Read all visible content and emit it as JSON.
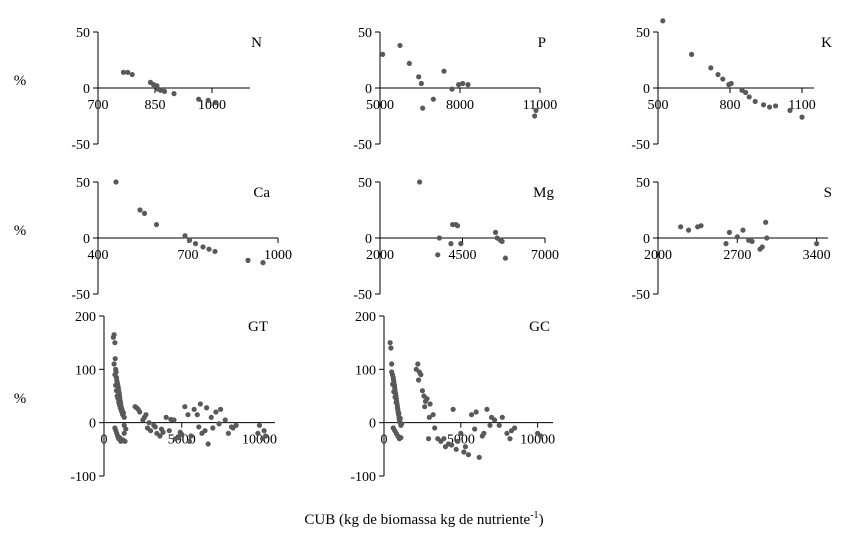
{
  "figure": {
    "xlabel_main": "CUB (kg de biomassa kg de nutriente",
    "xlabel_sup": "-1",
    "xlabel_close": ")",
    "ylabel": "%"
  },
  "chart_data": [
    {
      "type": "scatter",
      "title": "N",
      "ylabel": "%",
      "xlim": [
        700,
        1100
      ],
      "xticks": [
        700,
        850,
        1000
      ],
      "ylim": [
        -50,
        50
      ],
      "yticks": [
        50,
        0,
        -50
      ],
      "point_color": "#595959",
      "x": [
        767,
        778,
        790,
        838,
        846,
        855,
        858,
        865,
        875,
        900,
        965,
        990,
        1010
      ],
      "y": [
        14,
        14,
        12,
        5,
        3,
        2,
        -1,
        -2,
        -3,
        -5,
        -10,
        -11,
        -13
      ]
    },
    {
      "type": "scatter",
      "title": "P",
      "ylabel": "%",
      "xlim": [
        5000,
        11000
      ],
      "xticks": [
        5000,
        8000,
        11000
      ],
      "ylim": [
        -50,
        50
      ],
      "yticks": [
        50,
        0,
        -50
      ],
      "point_color": "#595959",
      "x": [
        5100,
        5750,
        6100,
        6450,
        6550,
        6600,
        7000,
        7400,
        7700,
        7950,
        8100,
        8300,
        10800,
        10850
      ],
      "y": [
        30,
        38,
        22,
        10,
        4,
        -18,
        -10,
        15,
        -1,
        3,
        4,
        3,
        -25,
        -20
      ]
    },
    {
      "type": "scatter",
      "title": "K",
      "ylabel": "%",
      "xlim": [
        500,
        1150
      ],
      "xticks": [
        500,
        800,
        1100
      ],
      "ylim": [
        -50,
        50
      ],
      "yticks": [
        50,
        0,
        -50
      ],
      "point_color": "#595959",
      "x": [
        520,
        640,
        720,
        750,
        770,
        795,
        805,
        850,
        865,
        880,
        905,
        940,
        965,
        990,
        1050,
        1100
      ],
      "y": [
        60,
        30,
        18,
        12,
        8,
        3,
        4,
        -2,
        -4,
        -8,
        -12,
        -15,
        -17,
        -16,
        -20,
        -26
      ]
    },
    {
      "type": "scatter",
      "title": "Ca",
      "ylabel": "%",
      "xlim": [
        400,
        1000
      ],
      "xticks": [
        400,
        700,
        1000
      ],
      "ylim": [
        -50,
        50
      ],
      "yticks": [
        50,
        0,
        -50
      ],
      "point_color": "#595959",
      "x": [
        460,
        540,
        555,
        595,
        690,
        705,
        725,
        750,
        770,
        790,
        900,
        950
      ],
      "y": [
        50,
        25,
        22,
        12,
        2,
        -2,
        -5,
        -8,
        -10,
        -12,
        -20,
        -22
      ]
    },
    {
      "type": "scatter",
      "title": "Mg",
      "ylabel": "%",
      "xlim": [
        2000,
        7000
      ],
      "xticks": [
        2000,
        4500,
        7000
      ],
      "ylim": [
        -50,
        50
      ],
      "yticks": [
        50,
        0,
        -50
      ],
      "point_color": "#595959",
      "x": [
        3200,
        3750,
        3800,
        4150,
        4200,
        4300,
        4350,
        4450,
        5500,
        5550,
        5650,
        5700,
        5800
      ],
      "y": [
        50,
        -15,
        0,
        -5,
        12,
        12,
        11,
        -5,
        5,
        0,
        -2,
        -3,
        -18
      ]
    },
    {
      "type": "scatter",
      "title": "S",
      "ylabel": "%",
      "xlim": [
        2000,
        3500
      ],
      "xticks": [
        2000,
        2700,
        3400
      ],
      "ylim": [
        -50,
        50
      ],
      "yticks": [
        50,
        0,
        -50
      ],
      "point_color": "#595959",
      "x": [
        2200,
        2270,
        2350,
        2380,
        2600,
        2630,
        2700,
        2750,
        2800,
        2830,
        2900,
        2920,
        2950,
        2960,
        3400
      ],
      "y": [
        10,
        7,
        10,
        11,
        -5,
        5,
        1,
        7,
        -2,
        -3,
        -10,
        -8,
        14,
        0,
        -5
      ]
    },
    {
      "type": "scatter",
      "title": "GT",
      "ylabel": "%",
      "xlim": [
        0,
        11000
      ],
      "xticks": [
        0,
        5000,
        10000
      ],
      "ylim": [
        -100,
        200
      ],
      "yticks": [
        200,
        100,
        0,
        -100
      ],
      "point_color": "#595959",
      "x": [
        600,
        650,
        700,
        720,
        750,
        780,
        800,
        820,
        850,
        870,
        900,
        920,
        950,
        980,
        1000,
        1020,
        1050,
        1080,
        1100,
        1120,
        1150,
        1180,
        1200,
        1250,
        1300,
        1350,
        700,
        760,
        820,
        880,
        940,
        1000,
        1080,
        1200,
        1300,
        2000,
        2200,
        2500,
        2700,
        2800,
        3000,
        3200,
        3400,
        3600,
        3800,
        4000,
        4200,
        4500,
        4600,
        4800,
        5000,
        5200,
        5500,
        5600,
        5800,
        6000,
        6200,
        6300,
        6500,
        6700,
        7000,
        7200,
        7500,
        7800,
        8000,
        8300,
        8500,
        10000,
        10200,
        10400
      ],
      "y": [
        160,
        165,
        150,
        120,
        100,
        95,
        85,
        80,
        75,
        72,
        68,
        65,
        60,
        55,
        50,
        45,
        40,
        35,
        30,
        28,
        25,
        22,
        20,
        18,
        -5,
        -35,
        -10,
        -15,
        -20,
        -25,
        -30,
        -28,
        -35,
        -32,
        -20,
        30,
        25,
        5,
        15,
        -10,
        -15,
        -5,
        -20,
        -25,
        -18,
        10,
        -15,
        5,
        -30,
        -28,
        -22,
        30,
        -35,
        -25,
        25,
        15,
        35,
        -20,
        -15,
        -40,
        -10,
        20,
        25,
        5,
        -20,
        -10,
        -5,
        -5,
        -30,
        -25
      ],
      "extra_x": [
        650,
        700,
        750,
        800,
        850,
        900,
        950,
        1000,
        1050,
        1100,
        1150,
        1200,
        1300,
        1400,
        2100,
        2300,
        2600,
        2900,
        3300,
        3700,
        4300,
        4900,
        5400,
        6100,
        6600,
        6900,
        7400,
        8200,
        9900,
        10300
      ],
      "extra_y": [
        110,
        90,
        70,
        60,
        50,
        45,
        38,
        33,
        28,
        24,
        20,
        15,
        10,
        -12,
        28,
        20,
        10,
        0,
        -8,
        -12,
        6,
        -18,
        15,
        -8,
        28,
        10,
        -2,
        -8,
        -20,
        -15
      ]
    },
    {
      "type": "scatter",
      "title": "GC",
      "ylabel": "%",
      "xlim": [
        0,
        11000
      ],
      "xticks": [
        0,
        5000,
        10000
      ],
      "ylim": [
        -100,
        200
      ],
      "yticks": [
        200,
        100,
        0,
        -100
      ],
      "point_color": "#595959",
      "x": [
        400,
        450,
        500,
        550,
        600,
        620,
        650,
        680,
        700,
        720,
        750,
        780,
        800,
        820,
        850,
        880,
        900,
        920,
        950,
        980,
        1000,
        1050,
        1100,
        600,
        700,
        800,
        900,
        1000,
        1100,
        2100,
        2200,
        2300,
        2400,
        2500,
        2600,
        2700,
        2800,
        2900,
        3000,
        3200,
        3500,
        3700,
        4000,
        4200,
        4500,
        4700,
        5000,
        5200,
        5500,
        5700,
        6000,
        6200,
        6500,
        6700,
        7000,
        7200,
        7500,
        8000,
        8200,
        8500,
        10000,
        10200
      ],
      "y": [
        150,
        140,
        110,
        90,
        85,
        80,
        75,
        70,
        65,
        60,
        55,
        50,
        45,
        40,
        35,
        30,
        25,
        20,
        15,
        10,
        5,
        0,
        -5,
        -10,
        -15,
        -20,
        -25,
        -30,
        -28,
        100,
        110,
        95,
        90,
        60,
        50,
        40,
        45,
        -30,
        35,
        15,
        -30,
        -35,
        -45,
        -40,
        25,
        -50,
        -20,
        -55,
        -60,
        15,
        20,
        -65,
        -20,
        25,
        10,
        5,
        -5,
        -20,
        -30,
        -10,
        -20,
        -25
      ],
      "extra_x": [
        500,
        560,
        640,
        720,
        790,
        870,
        960,
        1060,
        1150,
        2250,
        2650,
        2950,
        3300,
        3900,
        4400,
        4800,
        5300,
        5900,
        6400,
        6900,
        7700,
        8300
      ],
      "extra_y": [
        95,
        72,
        58,
        48,
        38,
        28,
        18,
        8,
        -2,
        80,
        30,
        10,
        -10,
        -30,
        -42,
        -35,
        -45,
        -12,
        -25,
        -5,
        10,
        -15
      ]
    }
  ]
}
